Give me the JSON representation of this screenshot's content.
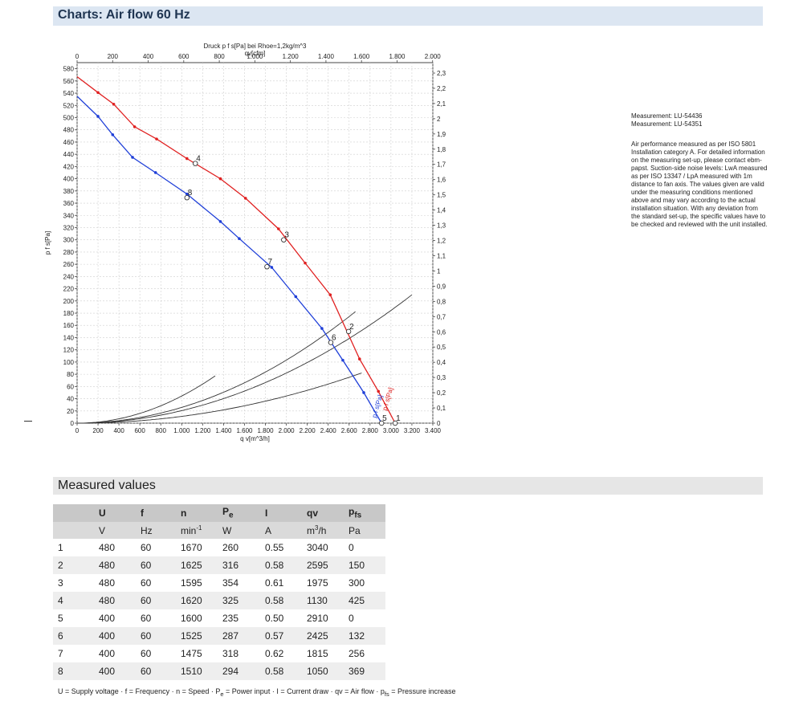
{
  "section_title": "Charts: Air flow 60 Hz",
  "table_title": "Measured values",
  "side_text": {
    "measurements": [
      "Measurement: LU-54436",
      "Measurement: LU-54351"
    ],
    "description": "Air performance measured as per ISO 5801 Installation category A. For detailed information on the measuring set-up, please contact ebm-papst. Suction-side noise levels: LwA measured as per ISO 13347 / LpA measured with 1m distance to fan axis. The values given are valid under the measuring conditions mentioned above and may vary according to the actual installation situation. With any deviation from the standard set-up, the specific values have to be checked and reviewed with the unit installed."
  },
  "chart_data": {
    "type": "line",
    "top_caption": "Druck p f s[Pa] bei Rhoe=1,2kg/m^3",
    "xlabel": "q v[m^3/h]",
    "x2label": "qv[cfm]",
    "ylabel": "p f s[Pa]",
    "y2label": "pfs_E[IN H2O]",
    "xlim": [
      0,
      3400
    ],
    "x_ticks": [
      0,
      200,
      400,
      600,
      800,
      1000,
      1200,
      1400,
      1600,
      1800,
      2000,
      2200,
      2400,
      2600,
      2800,
      3000,
      3200,
      3400
    ],
    "x_tick_labels": [
      "0",
      "200",
      "400",
      "600",
      "800",
      "1.000",
      "1.200",
      "1.400",
      "1.600",
      "1.800",
      "2.000",
      "2.200",
      "2.400",
      "2.600",
      "2.800",
      "3.000",
      "3.200",
      "3.400"
    ],
    "x2_ticks": [
      0,
      200,
      400,
      600,
      800,
      1000,
      1200,
      1400,
      1600,
      1800,
      2000
    ],
    "x2_tick_labels": [
      "0",
      "200",
      "400",
      "600",
      "800",
      "1.000",
      "1.200",
      "1.400",
      "1.600",
      "1.800",
      "2.000"
    ],
    "ylim": [
      0,
      580
    ],
    "y_ticks": [
      0,
      20,
      40,
      60,
      80,
      100,
      120,
      140,
      160,
      180,
      200,
      220,
      240,
      260,
      280,
      300,
      320,
      340,
      360,
      380,
      400,
      420,
      440,
      460,
      480,
      500,
      520,
      540,
      560,
      580
    ],
    "y2_ticks": [
      0,
      0.1,
      0.2,
      0.3,
      0.4,
      0.5,
      0.6,
      0.7,
      0.8,
      0.9,
      1,
      1.1,
      1.2,
      1.3,
      1.4,
      1.5,
      1.6,
      1.7,
      1.8,
      1.9,
      2,
      2.1,
      2.2,
      2.3
    ],
    "y2_tick_labels": [
      "0",
      "0,1",
      "0,2",
      "0,3",
      "0,4",
      "0,5",
      "0,6",
      "0,7",
      "0,8",
      "0,9",
      "1",
      "1,1",
      "1,2",
      "1,3",
      "1,4",
      "1,5",
      "1,6",
      "1,7",
      "1,8",
      "1,9",
      "2",
      "2,1",
      "2,2",
      "2,3"
    ],
    "grid": true,
    "series": [
      {
        "name": "p f s[Pa]",
        "color": "#e02020",
        "x": [
          0,
          200,
          350,
          550,
          760,
          1050,
          1370,
          1610,
          1925,
          2180,
          2420,
          2700,
          2880,
          3040
        ],
        "y": [
          567,
          541,
          522,
          485,
          465,
          433,
          400,
          368,
          318,
          262,
          210,
          105,
          52,
          0
        ],
        "markers": [
          200,
          350,
          550,
          760,
          1050,
          1370,
          1610,
          1925,
          2180,
          2420,
          2700,
          2880
        ]
      },
      {
        "name": "p f s[Pa]",
        "color": "#1f3fd8",
        "x": [
          0,
          200,
          340,
          530,
          750,
          1050,
          1370,
          1550,
          1860,
          2090,
          2340,
          2540,
          2740,
          2910
        ],
        "y": [
          535,
          502,
          472,
          435,
          410,
          375,
          330,
          302,
          255,
          207,
          155,
          103,
          50,
          0
        ],
        "markers": [
          200,
          340,
          530,
          750,
          1050,
          1370,
          1550,
          1860,
          2090,
          2340,
          2540,
          2740
        ]
      }
    ],
    "system_curves": [
      {
        "k": 4.44e-05,
        "x_end": 1320
      },
      {
        "k": 1.11e-05,
        "x_end": 2725
      },
      {
        "k": 2.58e-05,
        "x_end": 2675
      },
      {
        "k": 2.05e-05,
        "x_end": 3200
      }
    ],
    "operating_points": [
      {
        "label": "1",
        "x": 3040,
        "y": 0
      },
      {
        "label": "2",
        "x": 2595,
        "y": 150
      },
      {
        "label": "3",
        "x": 1975,
        "y": 300
      },
      {
        "label": "4",
        "x": 1130,
        "y": 425
      },
      {
        "label": "5",
        "x": 2910,
        "y": 0
      },
      {
        "label": "6",
        "x": 2425,
        "y": 132
      },
      {
        "label": "7",
        "x": 1815,
        "y": 256
      },
      {
        "label": "8",
        "x": 1050,
        "y": 369
      }
    ]
  },
  "table": {
    "headers": [
      "",
      "U",
      "f",
      "n",
      "P",
      "I",
      "qv",
      "p"
    ],
    "header_subs": [
      "",
      "",
      "",
      "",
      "e",
      "",
      "",
      "fs"
    ],
    "units": [
      "",
      "V",
      "Hz",
      "min",
      "W",
      "A",
      "m",
      "Pa"
    ],
    "unit_sups": [
      "",
      "",
      "",
      "-1",
      "",
      "",
      "3",
      ""
    ],
    "unit_tails": [
      "",
      "",
      "",
      "",
      "",
      "",
      "/h",
      ""
    ],
    "rows": [
      [
        "1",
        "480",
        "60",
        "1670",
        "260",
        "0.55",
        "3040",
        "0"
      ],
      [
        "2",
        "480",
        "60",
        "1625",
        "316",
        "0.58",
        "2595",
        "150"
      ],
      [
        "3",
        "480",
        "60",
        "1595",
        "354",
        "0.61",
        "1975",
        "300"
      ],
      [
        "4",
        "480",
        "60",
        "1620",
        "325",
        "0.58",
        "1130",
        "425"
      ],
      [
        "5",
        "400",
        "60",
        "1600",
        "235",
        "0.50",
        "2910",
        "0"
      ],
      [
        "6",
        "400",
        "60",
        "1525",
        "287",
        "0.57",
        "2425",
        "132"
      ],
      [
        "7",
        "400",
        "60",
        "1475",
        "318",
        "0.62",
        "1815",
        "256"
      ],
      [
        "8",
        "400",
        "60",
        "1510",
        "294",
        "0.58",
        "1050",
        "369"
      ]
    ]
  },
  "legend": {
    "prefix": "U = Supply voltage · f = Frequency · n = Speed · P",
    "sub1": "e",
    "mid": " = Power input · I = Current draw · qv = Air flow · p",
    "sub2": "fs",
    "suffix": " = Pressure increase"
  }
}
